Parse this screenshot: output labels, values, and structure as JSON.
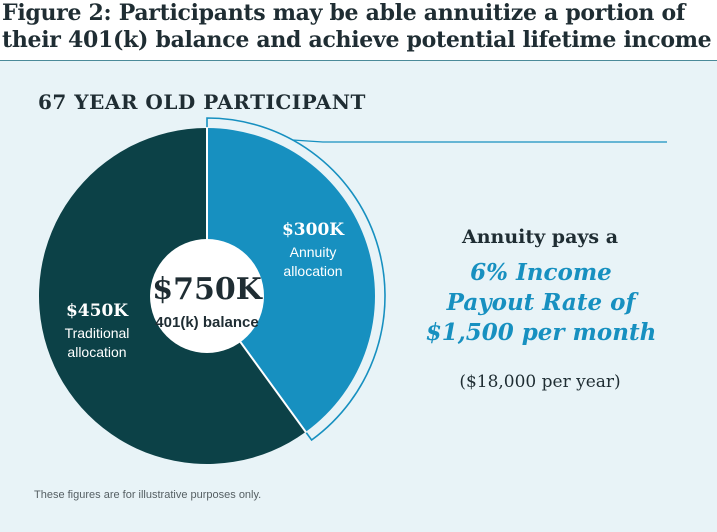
{
  "figure": {
    "title_line1": "Figure 2: Participants may be able annuitize a portion of",
    "title_line2": "their 401(k) balance and achieve potential lifetime income",
    "subtitle": "67 YEAR OLD PARTICIPANT",
    "footnote": "These figures are for illustrative purposes only."
  },
  "chart_data": {
    "type": "pie",
    "style": "donut",
    "center_value": "$750K",
    "center_label": "401(k) balance",
    "total": 750,
    "slices": [
      {
        "label_amount": "$300K",
        "label_lines": [
          "Annuity",
          "allocation"
        ],
        "value": 300,
        "color": "#1790c0",
        "highlighted": true
      },
      {
        "label_amount": "$450K",
        "label_lines": [
          "Traditional",
          "allocation"
        ],
        "value": 450,
        "color": "#0c4147",
        "highlighted": false
      }
    ]
  },
  "annuity_note": {
    "lead": "Annuity pays a",
    "rate_line1": "6% Income",
    "rate_line2": "Payout Rate of",
    "rate_line3": "$1,500 per month",
    "per_year": "($18,000 per year)"
  },
  "colors": {
    "accent": "#1790c0",
    "dark": "#0c4147",
    "panel": "#e8f3f7",
    "text": "#1f2d33"
  }
}
